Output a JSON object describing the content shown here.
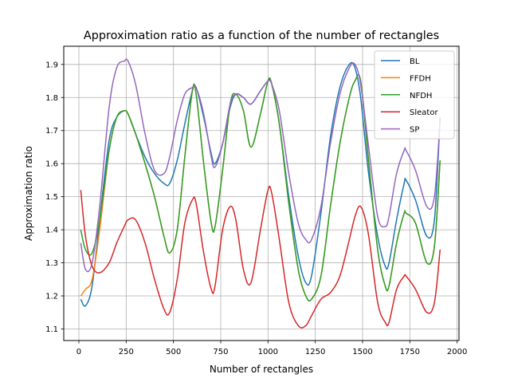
{
  "chart_data": {
    "type": "line",
    "title": "Approximation ratio as a function of the number of rectangles",
    "xlabel": "Number of rectangles",
    "ylabel": "Approximation ratio",
    "xlim": [
      -80,
      2010
    ],
    "ylim": [
      1.065,
      1.955
    ],
    "xticks": [
      0,
      250,
      500,
      750,
      1000,
      1250,
      1500,
      1750,
      2000
    ],
    "yticks": [
      1.1,
      1.2,
      1.3,
      1.4,
      1.5,
      1.6,
      1.7,
      1.8,
      1.9
    ],
    "xtick_labels": [
      "0",
      "250",
      "500",
      "750",
      "1000",
      "1250",
      "1500",
      "1750",
      "2000"
    ],
    "ytick_labels": [
      "1.1",
      "1.2",
      "1.3",
      "1.4",
      "1.5",
      "1.6",
      "1.7",
      "1.8",
      "1.9"
    ],
    "grid": true,
    "legend_position": "top-right",
    "x": [
      10,
      35,
      70,
      110,
      160,
      200,
      240,
      260,
      300,
      350,
      400,
      450,
      480,
      520,
      560,
      600,
      620,
      660,
      700,
      720,
      760,
      800,
      830,
      870,
      910,
      960,
      1000,
      1020,
      1060,
      1110,
      1160,
      1200,
      1230,
      1280,
      1330,
      1380,
      1430,
      1460,
      1490,
      1530,
      1580,
      1620,
      1640,
      1680,
      1720,
      1730,
      1780,
      1840,
      1880,
      1910
    ],
    "series": [
      {
        "name": "BL",
        "color": "#1f77b4",
        "values": [
          1.19,
          1.17,
          1.23,
          1.43,
          1.67,
          1.74,
          1.76,
          1.75,
          1.69,
          1.62,
          1.57,
          1.54,
          1.54,
          1.61,
          1.72,
          1.82,
          1.83,
          1.74,
          1.63,
          1.6,
          1.66,
          1.77,
          1.81,
          1.8,
          1.78,
          1.82,
          1.85,
          1.84,
          1.72,
          1.5,
          1.32,
          1.24,
          1.26,
          1.45,
          1.68,
          1.83,
          1.9,
          1.89,
          1.8,
          1.58,
          1.38,
          1.29,
          1.3,
          1.43,
          1.54,
          1.55,
          1.49,
          1.38,
          1.43,
          1.74
        ]
      },
      {
        "name": "FFDH",
        "color": "#ff7f0e",
        "values": [
          1.2,
          1.22,
          1.25,
          1.4,
          1.64,
          1.74,
          1.76,
          1.75,
          1.69,
          1.6,
          1.5,
          1.38,
          1.33,
          1.4,
          1.62,
          1.82,
          1.81,
          1.6,
          1.42,
          1.41,
          1.58,
          1.78,
          1.81,
          1.76,
          1.65,
          1.75,
          1.85,
          1.84,
          1.72,
          1.48,
          1.28,
          1.2,
          1.19,
          1.26,
          1.47,
          1.66,
          1.8,
          1.85,
          1.85,
          1.62,
          1.34,
          1.23,
          1.23,
          1.36,
          1.45,
          1.45,
          1.42,
          1.3,
          1.35,
          1.61
        ]
      },
      {
        "name": "NFDH",
        "color": "#2ca02c",
        "values": [
          1.4,
          1.34,
          1.33,
          1.43,
          1.64,
          1.74,
          1.76,
          1.75,
          1.69,
          1.6,
          1.5,
          1.38,
          1.33,
          1.4,
          1.62,
          1.82,
          1.81,
          1.6,
          1.42,
          1.41,
          1.58,
          1.78,
          1.81,
          1.76,
          1.65,
          1.75,
          1.85,
          1.84,
          1.72,
          1.48,
          1.28,
          1.2,
          1.19,
          1.26,
          1.47,
          1.66,
          1.8,
          1.85,
          1.85,
          1.62,
          1.34,
          1.23,
          1.23,
          1.36,
          1.45,
          1.45,
          1.42,
          1.3,
          1.35,
          1.61
        ]
      },
      {
        "name": "Sleator",
        "color": "#d62728",
        "values": [
          1.52,
          1.38,
          1.29,
          1.27,
          1.3,
          1.36,
          1.41,
          1.43,
          1.43,
          1.36,
          1.25,
          1.16,
          1.15,
          1.25,
          1.42,
          1.49,
          1.48,
          1.33,
          1.22,
          1.23,
          1.4,
          1.47,
          1.43,
          1.28,
          1.24,
          1.4,
          1.52,
          1.51,
          1.37,
          1.18,
          1.11,
          1.11,
          1.14,
          1.19,
          1.21,
          1.26,
          1.37,
          1.44,
          1.47,
          1.39,
          1.18,
          1.12,
          1.12,
          1.22,
          1.26,
          1.26,
          1.22,
          1.15,
          1.18,
          1.34
        ]
      },
      {
        "name": "SP",
        "color": "#9467bd",
        "values": [
          1.36,
          1.28,
          1.3,
          1.47,
          1.77,
          1.89,
          1.91,
          1.91,
          1.84,
          1.69,
          1.58,
          1.57,
          1.62,
          1.73,
          1.81,
          1.83,
          1.83,
          1.75,
          1.62,
          1.59,
          1.66,
          1.78,
          1.81,
          1.8,
          1.78,
          1.82,
          1.85,
          1.84,
          1.76,
          1.57,
          1.42,
          1.37,
          1.37,
          1.47,
          1.66,
          1.81,
          1.89,
          1.9,
          1.84,
          1.66,
          1.44,
          1.41,
          1.44,
          1.57,
          1.64,
          1.64,
          1.58,
          1.47,
          1.5,
          1.73
        ]
      }
    ]
  }
}
